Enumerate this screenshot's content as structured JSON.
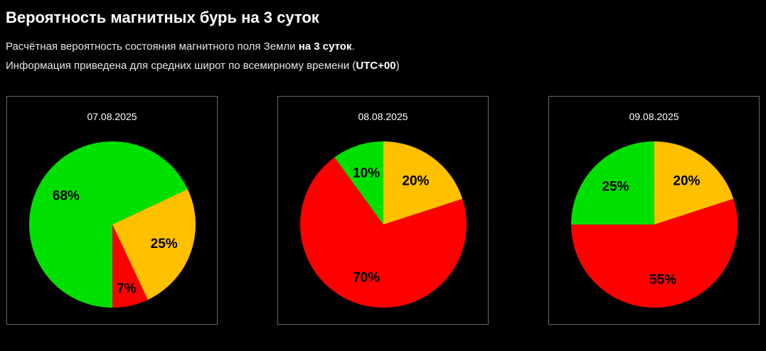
{
  "header": {
    "title": "Вероятность магнитных бурь на 3 суток",
    "desc_line1_prefix": "Расчётная вероятность состояния магнитного поля Земли ",
    "desc_line1_bold": "на 3 суток",
    "desc_line1_suffix": ".",
    "desc_line2_prefix": "Информация приведена для средних широт по всемирному времени (",
    "desc_line2_bold": "UTC+00",
    "desc_line2_suffix": ")"
  },
  "colors": {
    "green": "#00e000",
    "yellow": "#ffc000",
    "red": "#ff0000"
  },
  "chart_data": [
    {
      "type": "pie",
      "title": "07.08.2025",
      "slices": [
        {
          "label": "68%",
          "value": 68,
          "color": "green"
        },
        {
          "label": "25%",
          "value": 25,
          "color": "yellow"
        },
        {
          "label": "7%",
          "value": 7,
          "color": "red"
        }
      ]
    },
    {
      "type": "pie",
      "title": "08.08.2025",
      "slices": [
        {
          "label": "70%",
          "value": 70,
          "color": "red"
        },
        {
          "label": "10%",
          "value": 10,
          "color": "green"
        },
        {
          "label": "20%",
          "value": 20,
          "color": "yellow"
        }
      ]
    },
    {
      "type": "pie",
      "title": "09.08.2025",
      "slices": [
        {
          "label": "20%",
          "value": 20,
          "color": "yellow"
        },
        {
          "label": "55%",
          "value": 55,
          "color": "red"
        },
        {
          "label": "25%",
          "value": 25,
          "color": "green"
        }
      ]
    }
  ]
}
